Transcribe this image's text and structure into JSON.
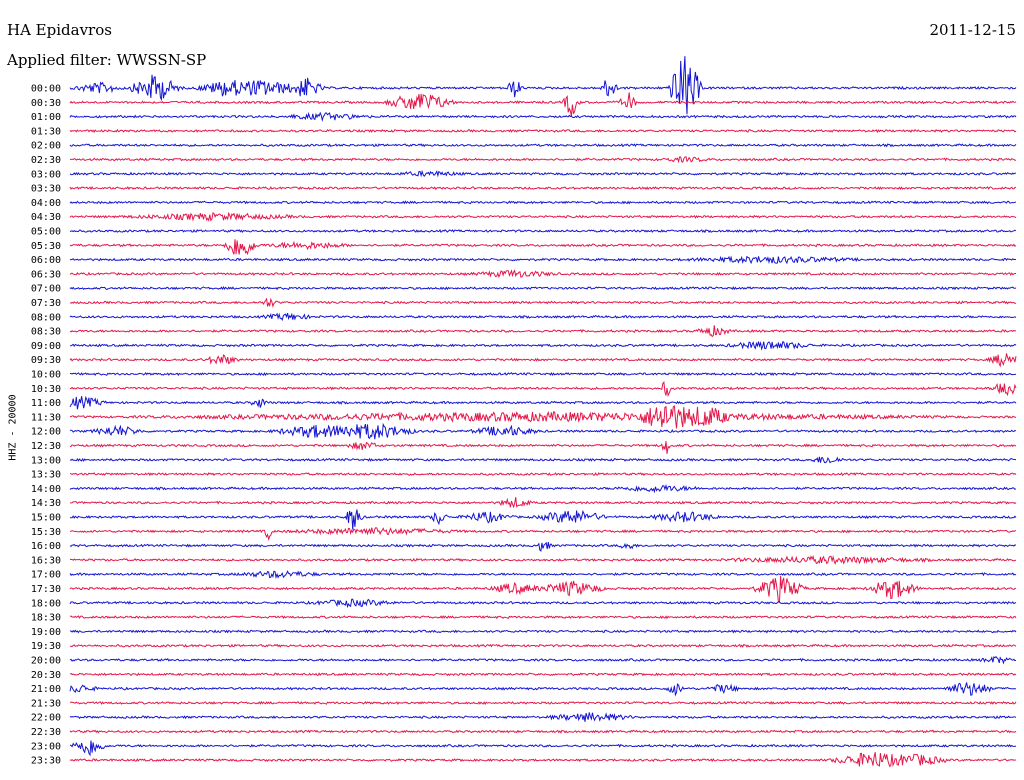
{
  "header": {
    "station": "HA Epidavros",
    "filter_label": "Applied filter: WWSSN-SP",
    "date": "2011-12-15"
  },
  "colors": {
    "even_trace": "#1414d2",
    "odd_trace": "#e4174b",
    "text": "#000000"
  },
  "chart_data": {
    "type": "line",
    "title": "HA Epidavros",
    "ylabel": "HHZ - 20000",
    "grid": false,
    "rows": [
      {
        "label": "00:00",
        "events": [
          {
            "t": 0.03,
            "a": 5,
            "w": 0.03
          },
          {
            "t": 0.09,
            "a": 14,
            "w": 0.03
          },
          {
            "t": 0.16,
            "a": 6,
            "w": 0.03
          },
          {
            "t": 0.2,
            "a": 8,
            "w": 0.05
          },
          {
            "t": 0.25,
            "a": 10,
            "w": 0.02
          },
          {
            "t": 0.47,
            "a": 9,
            "w": 0.01
          },
          {
            "t": 0.57,
            "a": 12,
            "w": 0.01
          },
          {
            "t": 0.65,
            "a": 34,
            "w": 0.02
          }
        ]
      },
      {
        "label": "00:30",
        "events": [
          {
            "t": 0.37,
            "a": 10,
            "w": 0.04
          },
          {
            "t": 0.53,
            "a": 14,
            "w": 0.01
          },
          {
            "t": 0.59,
            "a": 10,
            "w": 0.01
          }
        ]
      },
      {
        "label": "01:00",
        "events": [
          {
            "t": 0.27,
            "a": 3,
            "w": 0.05
          }
        ]
      },
      {
        "label": "01:30",
        "events": []
      },
      {
        "label": "02:00",
        "events": []
      },
      {
        "label": "02:30",
        "events": [
          {
            "t": 0.65,
            "a": 2,
            "w": 0.03
          }
        ]
      },
      {
        "label": "03:00",
        "events": [
          {
            "t": 0.38,
            "a": 2,
            "w": 0.04
          }
        ]
      },
      {
        "label": "03:30",
        "events": []
      },
      {
        "label": "04:00",
        "events": []
      },
      {
        "label": "04:30",
        "events": [
          {
            "t": 0.15,
            "a": 3,
            "w": 0.1
          }
        ]
      },
      {
        "label": "05:00",
        "events": []
      },
      {
        "label": "05:30",
        "events": [
          {
            "t": 0.18,
            "a": 14,
            "w": 0.02
          },
          {
            "t": 0.25,
            "a": 3,
            "w": 0.05
          }
        ]
      },
      {
        "label": "06:00",
        "events": [
          {
            "t": 0.74,
            "a": 3,
            "w": 0.1
          }
        ]
      },
      {
        "label": "06:30",
        "events": [
          {
            "t": 0.47,
            "a": 3,
            "w": 0.05
          }
        ]
      },
      {
        "label": "07:00",
        "events": []
      },
      {
        "label": "07:30",
        "events": [
          {
            "t": 0.21,
            "a": 5,
            "w": 0.01
          }
        ]
      },
      {
        "label": "08:00",
        "events": [
          {
            "t": 0.23,
            "a": 3,
            "w": 0.03
          }
        ]
      },
      {
        "label": "08:30",
        "events": [
          {
            "t": 0.68,
            "a": 5,
            "w": 0.02
          }
        ]
      },
      {
        "label": "09:00",
        "events": [
          {
            "t": 0.74,
            "a": 4,
            "w": 0.05
          }
        ]
      },
      {
        "label": "09:30",
        "events": [
          {
            "t": 0.16,
            "a": 5,
            "w": 0.02
          },
          {
            "t": 0.99,
            "a": 8,
            "w": 0.02
          }
        ]
      },
      {
        "label": "10:00",
        "events": []
      },
      {
        "label": "10:30",
        "events": [
          {
            "t": 0.63,
            "a": 12,
            "w": 0.005
          },
          {
            "t": 0.99,
            "a": 6,
            "w": 0.02
          }
        ]
      },
      {
        "label": "11:00",
        "events": [
          {
            "t": 0.01,
            "a": 6,
            "w": 0.03
          },
          {
            "t": 0.2,
            "a": 5,
            "w": 0.01
          }
        ]
      },
      {
        "label": "11:30",
        "events": [
          {
            "t": 0.5,
            "a": 4,
            "w": 0.45
          },
          {
            "t": 0.63,
            "a": 13,
            "w": 0.03
          },
          {
            "t": 0.67,
            "a": 9,
            "w": 0.03
          }
        ]
      },
      {
        "label": "12:00",
        "events": [
          {
            "t": 0.05,
            "a": 5,
            "w": 0.03
          },
          {
            "t": 0.26,
            "a": 6,
            "w": 0.05
          },
          {
            "t": 0.32,
            "a": 8,
            "w": 0.05
          },
          {
            "t": 0.46,
            "a": 5,
            "w": 0.04
          }
        ]
      },
      {
        "label": "12:30",
        "events": [
          {
            "t": 0.31,
            "a": 4,
            "w": 0.02
          },
          {
            "t": 0.63,
            "a": 10,
            "w": 0.005
          }
        ]
      },
      {
        "label": "13:00",
        "events": [
          {
            "t": 0.8,
            "a": 4,
            "w": 0.02
          }
        ]
      },
      {
        "label": "13:30",
        "events": []
      },
      {
        "label": "14:00",
        "events": [
          {
            "t": 0.62,
            "a": 3,
            "w": 0.05
          }
        ]
      },
      {
        "label": "14:30",
        "events": [
          {
            "t": 0.47,
            "a": 5,
            "w": 0.02
          }
        ]
      },
      {
        "label": "15:00",
        "events": [
          {
            "t": 0.3,
            "a": 14,
            "w": 0.01
          },
          {
            "t": 0.39,
            "a": 7,
            "w": 0.01
          },
          {
            "t": 0.44,
            "a": 5,
            "w": 0.03
          },
          {
            "t": 0.53,
            "a": 7,
            "w": 0.04
          },
          {
            "t": 0.65,
            "a": 5,
            "w": 0.04
          }
        ]
      },
      {
        "label": "15:30",
        "events": [
          {
            "t": 0.21,
            "a": 9,
            "w": 0.005
          },
          {
            "t": 0.32,
            "a": 3,
            "w": 0.1
          }
        ]
      },
      {
        "label": "16:00",
        "events": [
          {
            "t": 0.5,
            "a": 6,
            "w": 0.01
          },
          {
            "t": 0.59,
            "a": 4,
            "w": 0.01
          }
        ]
      },
      {
        "label": "16:30",
        "events": [
          {
            "t": 0.8,
            "a": 3,
            "w": 0.12
          }
        ]
      },
      {
        "label": "17:00",
        "events": [
          {
            "t": 0.22,
            "a": 3,
            "w": 0.05
          }
        ]
      },
      {
        "label": "17:30",
        "events": [
          {
            "t": 0.47,
            "a": 5,
            "w": 0.03
          },
          {
            "t": 0.53,
            "a": 7,
            "w": 0.04
          },
          {
            "t": 0.75,
            "a": 13,
            "w": 0.03
          },
          {
            "t": 0.87,
            "a": 10,
            "w": 0.03
          }
        ]
      },
      {
        "label": "18:00",
        "events": [
          {
            "t": 0.3,
            "a": 3,
            "w": 0.05
          }
        ]
      },
      {
        "label": "18:30",
        "events": []
      },
      {
        "label": "19:00",
        "events": []
      },
      {
        "label": "19:30",
        "events": []
      },
      {
        "label": "20:00",
        "events": [
          {
            "t": 0.98,
            "a": 3,
            "w": 0.02
          }
        ]
      },
      {
        "label": "20:30",
        "events": []
      },
      {
        "label": "21:00",
        "events": [
          {
            "t": 0.01,
            "a": 4,
            "w": 0.02
          },
          {
            "t": 0.64,
            "a": 6,
            "w": 0.01
          },
          {
            "t": 0.69,
            "a": 4,
            "w": 0.02
          },
          {
            "t": 0.95,
            "a": 7,
            "w": 0.03
          }
        ]
      },
      {
        "label": "21:30",
        "events": []
      },
      {
        "label": "22:00",
        "events": [
          {
            "t": 0.55,
            "a": 4,
            "w": 0.05
          }
        ]
      },
      {
        "label": "22:30",
        "events": []
      },
      {
        "label": "23:00",
        "events": [
          {
            "t": 0.02,
            "a": 10,
            "w": 0.02
          }
        ]
      },
      {
        "label": "23:30",
        "events": [
          {
            "t": 0.85,
            "a": 8,
            "w": 0.05
          },
          {
            "t": 0.9,
            "a": 5,
            "w": 0.03
          }
        ]
      }
    ]
  }
}
